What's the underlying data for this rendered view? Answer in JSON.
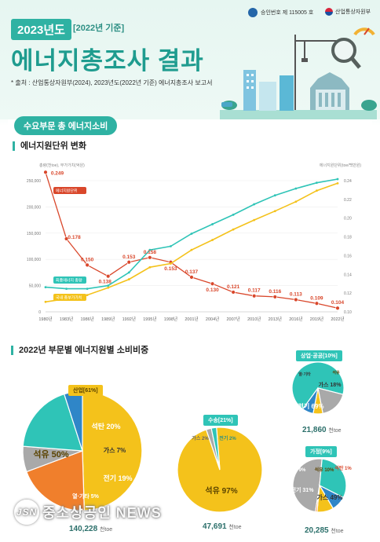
{
  "header": {
    "year_badge": "2023년도",
    "base_year": "[2022년 기준]",
    "title": "에너지총조사 결과",
    "source": "* 출처 : 산업통상자원부(2024), 2023년도(2022년 기준) 에너지총조사 보고서",
    "approval": "승인번호 제 115005 호",
    "ministry": "산업통상자원부"
  },
  "section1": {
    "pill": "수요부문 총 에너지소비",
    "subhead": "에너지원단위 변화"
  },
  "section2": {
    "subhead": "2022년 부문별 에너지원별 소비비중"
  },
  "colors": {
    "teal": "#2fc4b7",
    "yellow": "#f4c21b",
    "red": "#d9472b",
    "orange": "#f07f2c",
    "gray": "#a9a9a9",
    "blue": "#2f86c8",
    "header_teal": "#2fb2a3"
  },
  "chart_data": [
    {
      "type": "line",
      "title": "에너지원단위 변화",
      "ylabel_left": "총량(천toe), 부가가치(억원)",
      "ylabel_right": "에너지원단위(toe/백만원)",
      "x": [
        "1980년",
        "1983년",
        "1986년",
        "1989년",
        "1992년",
        "1995년",
        "1998년",
        "2001년",
        "2004년",
        "2007년",
        "2010년",
        "2013년",
        "2016년",
        "2019년",
        "2022년"
      ],
      "yticks_left": [
        "0",
        "50,000",
        "100,000",
        "150,000",
        "200,000",
        "250,000"
      ],
      "yticks_right": [
        "0.10",
        "0.12",
        "0.14",
        "0.16",
        "0.18",
        "0.20",
        "0.22",
        "0.24"
      ],
      "ylim_left": [
        0,
        250000
      ],
      "ylim_right": [
        0.1,
        0.24
      ],
      "series": [
        {
          "name": "에너지원단위",
          "axis": "right",
          "values": [
            0.249,
            0.178,
            0.15,
            0.138,
            0.153,
            0.158,
            0.153,
            0.137,
            0.13,
            0.121,
            0.117,
            0.116,
            0.113,
            0.109,
            0.104
          ],
          "labels": [
            "0.249",
            "0.178",
            "0.150",
            "0.138",
            "0.153",
            "0.158",
            "0.153",
            "0.137",
            "0.130",
            "0.121",
            "0.117",
            "0.116",
            "0.113",
            "0.109",
            "0.104"
          ]
        },
        {
          "name": "최종에너지 총량",
          "axis": "left",
          "values": [
            47000,
            44000,
            44000,
            50000,
            75000,
            118000,
            125000,
            149000,
            167000,
            185000,
            205000,
            222000,
            235000,
            246000,
            253000
          ]
        },
        {
          "name": "국내 총부가가치",
          "axis": "left",
          "values": [
            19000,
            25000,
            32000,
            46000,
            62000,
            85000,
            92000,
            118000,
            137000,
            157000,
            175000,
            192000,
            210000,
            231000,
            245000
          ]
        }
      ]
    },
    {
      "type": "pie",
      "title": "산업[61%]",
      "total": "140,228",
      "unit": "천toe",
      "categories": [
        "석유",
        "석탄",
        "가스",
        "전기",
        "열·기타"
      ],
      "values": [
        50,
        20,
        7,
        19,
        5
      ],
      "labels": [
        "석유 50%",
        "석탄 20%",
        "가스 7%",
        "전기 19%",
        "열·기타 5%"
      ]
    },
    {
      "type": "pie",
      "title": "수송[21%]",
      "total": "47,691",
      "unit": "천toe",
      "categories": [
        "석유",
        "가스",
        "전기"
      ],
      "values": [
        97,
        2,
        2
      ],
      "labels": [
        "석유 97%",
        "가스 2%",
        "전기 2%"
      ]
    },
    {
      "type": "pie",
      "title": "상업·공공[10%]",
      "total": "21,860",
      "unit": "천toe",
      "categories": [
        "전기",
        "가스",
        "석유",
        "열·기타"
      ],
      "values": [
        69,
        18,
        6,
        7
      ],
      "labels": [
        "전기 69%",
        "가스 18%",
        "석유",
        "열·기타"
      ]
    },
    {
      "type": "pie",
      "title": "가정[9%]",
      "total": "20,285",
      "unit": "천toe",
      "categories": [
        "가스",
        "전기",
        "열·기타",
        "석유",
        "석탄"
      ],
      "values": [
        49,
        31,
        9,
        10,
        1
      ],
      "labels": [
        "가스 49%",
        "전기 31%",
        "9%",
        "석유 10%",
        "석탄 1%"
      ]
    }
  ],
  "watermark": {
    "logo": "JSN",
    "text": "중소상공인 NEWS"
  }
}
